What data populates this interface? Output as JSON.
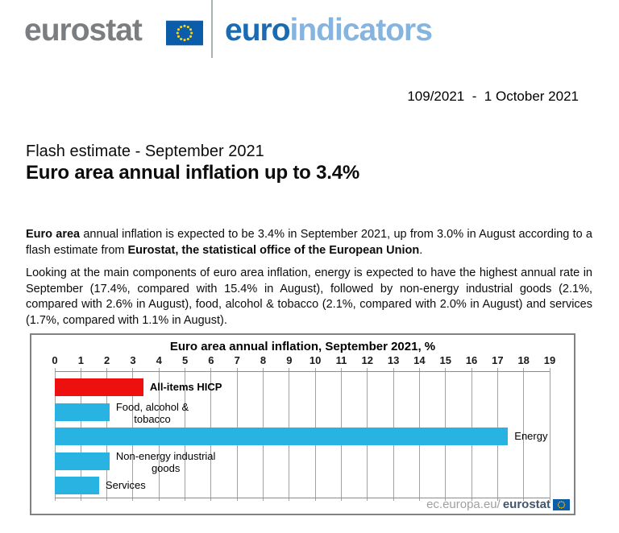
{
  "colors": {
    "logo_gray": "#7b7e81",
    "euro_blue": "#1a6bb1",
    "indicators_blue": "#85b4de",
    "eu_blue": "#0b5da9",
    "star_yellow": "#ffd617",
    "chart_border": "#828282",
    "axis_gray": "#8c8c8c",
    "grid_gray": "#a2a2a2",
    "footer_gray": "#a0a0a0",
    "footer_dark": "#44546a"
  },
  "header": {
    "logo_text": "eurostat",
    "brand_euro": "euro",
    "brand_indicators": "indicators",
    "issue_line": "109/2021  -  1 October 2021"
  },
  "titles": {
    "kicker": "Flash estimate - September 2021",
    "headline": "Euro area annual inflation up to 3.4%"
  },
  "paragraphs": {
    "p1": [
      {
        "text": "Euro area",
        "bold": true
      },
      {
        "text": " annual inflation is expected to be 3.4% in September 2021, up from 3.0% in August according to a flash estimate from ",
        "bold": false
      },
      {
        "text": "Eurostat, the statistical office of the European Union",
        "bold": true
      },
      {
        "text": ".",
        "bold": false
      }
    ],
    "p2": [
      {
        "text": "Looking at the main components of euro area inflation, energy is expected to have the highest annual rate in September (17.4%, compared with 15.4% in August), followed by non-energy industrial goods (2.1%, compared with 2.6% in August), food, alcohol & tobacco (2.1%, compared with 2.0% in August) and services (1.7%, compared with 1.1% in August).",
        "bold": false
      }
    ]
  },
  "chart_data": {
    "type": "bar",
    "orientation": "horizontal",
    "title": "Euro area annual inflation, September 2021, %",
    "categories": [
      "All-items HICP",
      "Food, alcohol & tobacco",
      "Energy",
      "Non-energy industrial goods",
      "Services"
    ],
    "values": [
      3.4,
      2.1,
      17.4,
      2.1,
      1.7
    ],
    "label_lines": [
      [
        "All-items HICP"
      ],
      [
        "Food, alcohol &",
        "tobacco"
      ],
      [
        "Energy"
      ],
      [
        "Non-energy industrial",
        "goods"
      ],
      [
        "Services"
      ]
    ],
    "label_bold_index": 0,
    "bar_color_default": "#29b3e3",
    "highlight_index": 0,
    "highlight_color": "#ee0f0f",
    "xlabel": "",
    "ylabel": "",
    "xlim": [
      0,
      19
    ],
    "tick_step": 1,
    "axis_position": "top",
    "grid": true,
    "source_footer": {
      "prefix": "ec.europa.eu/",
      "bold": "eurostat"
    }
  }
}
